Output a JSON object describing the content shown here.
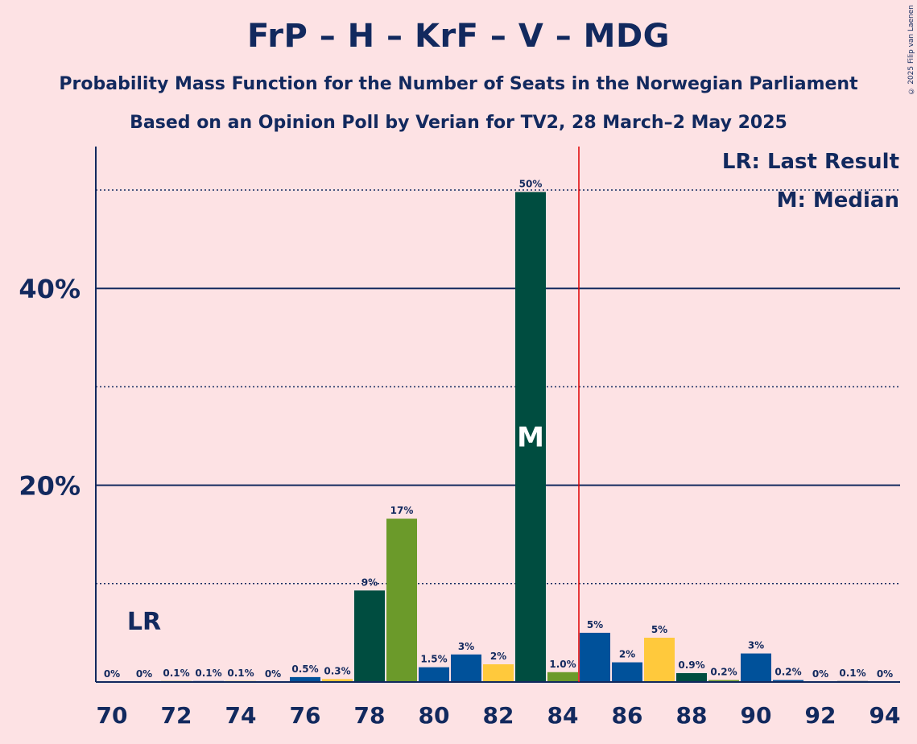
{
  "header": {
    "title": "FrP – H – KrF – V – MDG",
    "subtitle1": "Probability Mass Function for the Number of Seats in the Norwegian Parliament",
    "subtitle2": "Based on an Opinion Poll by Verian for TV2, 28 March–2 May 2025",
    "copyright": "© 2025 Filip van Laenen"
  },
  "legend": {
    "lr": "LR: Last Result",
    "m": "M: Median"
  },
  "markers": {
    "lr_text": "LR",
    "median_text": "M",
    "lr_seat": 71,
    "median_seat": 83,
    "majority_line_seat": 84.5
  },
  "colors": {
    "background": "#fde2e4",
    "text": "#12295e",
    "dark_green": "#004d40",
    "olive_green": "#6b9a2a",
    "blue": "#00519a",
    "yellow": "#ffc93c",
    "majority_line": "#e00000"
  },
  "chart_data": {
    "type": "bar",
    "x": [
      70,
      71,
      72,
      73,
      74,
      75,
      76,
      77,
      78,
      79,
      80,
      81,
      82,
      83,
      84,
      85,
      86,
      87,
      88,
      89,
      90,
      91,
      92,
      93,
      94
    ],
    "values": [
      0,
      0,
      0.1,
      0.1,
      0.1,
      0,
      0.5,
      0.3,
      9.3,
      16.6,
      1.5,
      2.8,
      1.8,
      49.8,
      1.0,
      5.0,
      2.0,
      4.5,
      0.9,
      0.2,
      2.9,
      0.2,
      0,
      0.1,
      0
    ],
    "labels": [
      "0%",
      "0%",
      "0.1%",
      "0.1%",
      "0.1%",
      "0%",
      "0.5%",
      "0.3%",
      "9%",
      "17%",
      "1.5%",
      "3%",
      "2%",
      "50%",
      "1.0%",
      "5%",
      "2%",
      "5%",
      "0.9%",
      "0.2%",
      "3%",
      "0.2%",
      "0%",
      "0.1%",
      "0%"
    ],
    "bar_colors": [
      "#00519a",
      "#004d40",
      "#6b9a2a",
      "#00519a",
      "#ffc93c",
      "#004d40",
      "#00519a",
      "#ffc93c",
      "#004d40",
      "#6b9a2a",
      "#00519a",
      "#00519a",
      "#ffc93c",
      "#004d40",
      "#6b9a2a",
      "#00519a",
      "#00519a",
      "#ffc93c",
      "#004d40",
      "#6b9a2a",
      "#00519a",
      "#00519a",
      "#ffc93c",
      "#004d40",
      "#6b9a2a"
    ],
    "xticks": [
      70,
      72,
      74,
      76,
      78,
      80,
      82,
      84,
      86,
      88,
      90,
      92,
      94
    ],
    "xtick_labels": [
      "70",
      "72",
      "74",
      "76",
      "78",
      "80",
      "82",
      "84",
      "86",
      "88",
      "90",
      "92",
      "94"
    ],
    "yticks_major": [
      20,
      40
    ],
    "ytick_labels": [
      "20%",
      "40%"
    ],
    "yticks_minor": [
      10,
      30,
      50
    ],
    "ylim": [
      0,
      54.5
    ],
    "grid": true,
    "legend_position": "top-right"
  }
}
